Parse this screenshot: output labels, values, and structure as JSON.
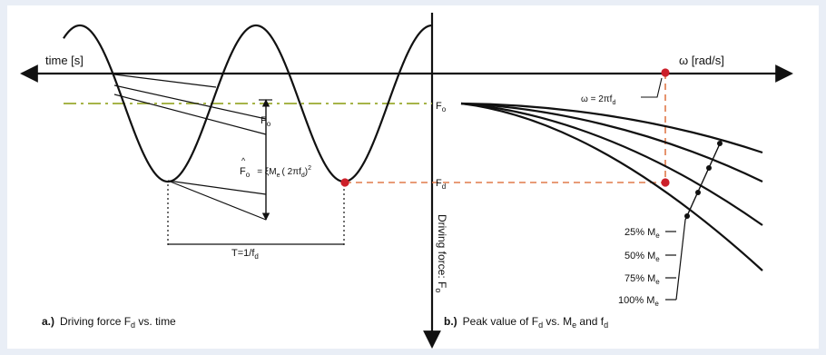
{
  "colors": {
    "background": "#e9eef6",
    "panel": "#ffffff",
    "ink": "#111111",
    "dash_orange": "#e07a4a",
    "dash_green": "#9aaa2e",
    "marker_red": "#cc1f2a"
  },
  "labels": {
    "time_axis": "time [s]",
    "omega_axis": "ω [rad/s]",
    "omega_eq": "ω = 2πf",
    "omega_eq_sub": "d",
    "f_hat_main": "F",
    "f_hat_sub": "o",
    "f_hat_rhs": "= ξM",
    "f_hat_rhs_sub": "e",
    "f_hat_paren": "( 2πf",
    "f_hat_paren_sub": "d",
    "f_hat_close": ")",
    "f_hat_exp": "2",
    "fo_arrow_main": "F",
    "fo_arrow_sub": "o",
    "fo_axis_main": "F",
    "fo_axis_sub": "o",
    "fd_axis_main": "F",
    "fd_axis_sub": "d",
    "period_main": "T=1/f",
    "period_sub": "d",
    "vertical_axis_main": "Driving force: F",
    "vertical_axis_sub": "o",
    "caption_a_prefix": "a.)",
    "caption_a_text": "Driving force F",
    "caption_a_sub": "d",
    "caption_a_tail": " vs. time",
    "caption_b_prefix": "b.)",
    "caption_b_text": "Peak value of F",
    "caption_b_sub": "d",
    "caption_b_mid": " vs. M",
    "caption_b_sub2": "e",
    "caption_b_tail": " and f",
    "caption_b_sub3": "d"
  },
  "mass_labels": [
    {
      "text": "25% M",
      "sub": "e"
    },
    {
      "text": "50% M",
      "sub": "e"
    },
    {
      "text": "75% M",
      "sub": "e"
    },
    {
      "text": "100% M",
      "sub": "e"
    }
  ]
}
